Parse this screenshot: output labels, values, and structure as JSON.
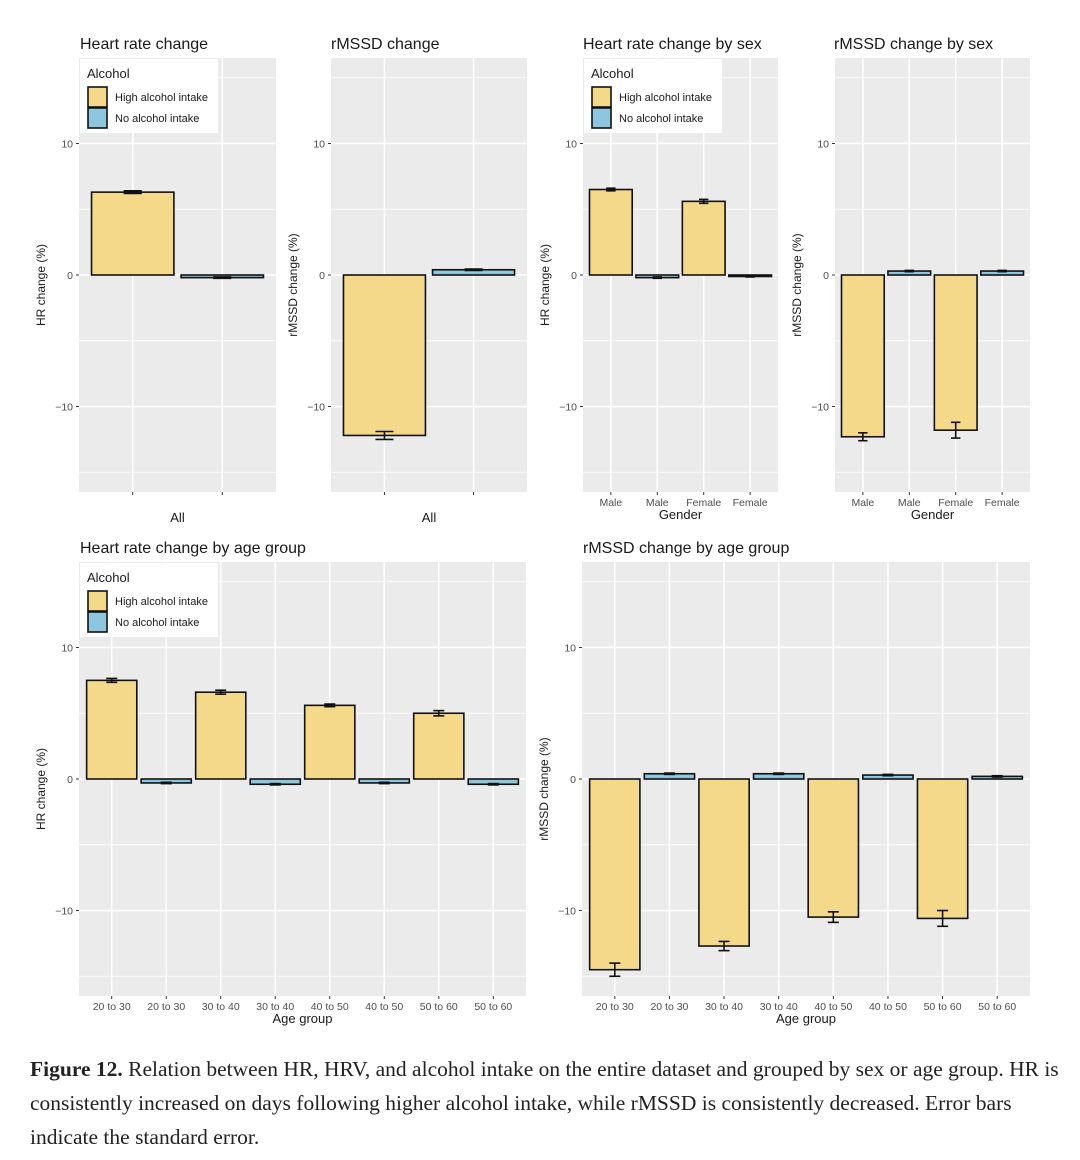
{
  "colors": {
    "high": "#F5D98A",
    "none": "#8EC6E0",
    "panel_bg": "#EBEBEB",
    "grid": "#FFFFFF",
    "bar_outline": "#111111",
    "tick_text": "#4D4D4D"
  },
  "legend": {
    "title": "Alcohol",
    "items": [
      {
        "label": "High alcohol intake",
        "key": "high"
      },
      {
        "label": "No alcohol intake",
        "key": "none"
      }
    ]
  },
  "chart_data": [
    {
      "type": "bar",
      "title": "Heart rate change",
      "xlabel": "All",
      "ylabel": "HR change (%)",
      "ylim": [
        -16.5,
        16.5
      ],
      "yticks": [
        10,
        0,
        -10
      ],
      "show_tick_labels": false,
      "legend": true,
      "categories": [
        "All",
        "All"
      ],
      "series_keys": [
        "high",
        "none"
      ],
      "values": [
        6.3,
        -0.2
      ],
      "errors": [
        0.1,
        0.05
      ]
    },
    {
      "type": "bar",
      "title": "rMSSD change",
      "xlabel": "All",
      "ylabel": "rMSSD change (%)",
      "ylim": [
        -16.5,
        16.5
      ],
      "yticks": [
        10,
        0,
        -10
      ],
      "show_tick_labels": false,
      "legend": false,
      "categories": [
        "All",
        "All"
      ],
      "series_keys": [
        "high",
        "none"
      ],
      "values": [
        -12.2,
        0.4
      ],
      "errors": [
        0.3,
        0.05
      ]
    },
    {
      "type": "bar",
      "title": "Heart rate change by sex",
      "xlabel": "Gender",
      "ylabel": "HR change (%)",
      "ylim": [
        -16.5,
        16.5
      ],
      "yticks": [
        10,
        0,
        -10
      ],
      "show_tick_labels": true,
      "legend": true,
      "categories": [
        "Male",
        "Male",
        "Female",
        "Female"
      ],
      "series_keys": [
        "high",
        "none",
        "high",
        "none"
      ],
      "values": [
        6.5,
        -0.2,
        5.6,
        -0.1
      ],
      "errors": [
        0.1,
        0.05,
        0.15,
        0.05
      ]
    },
    {
      "type": "bar",
      "title": "rMSSD change by sex",
      "xlabel": "Gender",
      "ylabel": "rMSSD change (%)",
      "ylim": [
        -16.5,
        16.5
      ],
      "yticks": [
        10,
        0,
        -10
      ],
      "show_tick_labels": true,
      "legend": false,
      "categories": [
        "Male",
        "Male",
        "Female",
        "Female"
      ],
      "series_keys": [
        "high",
        "none",
        "high",
        "none"
      ],
      "values": [
        -12.3,
        0.3,
        -11.8,
        0.3
      ],
      "errors": [
        0.3,
        0.05,
        0.6,
        0.05
      ]
    },
    {
      "type": "bar",
      "title": "Heart rate change by age group",
      "xlabel": "Age group",
      "ylabel": "HR change (%)",
      "ylim": [
        -16.5,
        16.5
      ],
      "yticks": [
        10,
        0,
        -10
      ],
      "show_tick_labels": true,
      "legend": true,
      "categories": [
        "20 to 30",
        "20 to 30",
        "30 to 40",
        "30 to 40",
        "40 to 50",
        "40 to 50",
        "50 to 60",
        "50 to 60"
      ],
      "series_keys": [
        "high",
        "none",
        "high",
        "none",
        "high",
        "none",
        "high",
        "none"
      ],
      "values": [
        7.5,
        -0.3,
        6.6,
        -0.4,
        5.6,
        -0.3,
        5.0,
        -0.4
      ],
      "errors": [
        0.15,
        0.05,
        0.15,
        0.05,
        0.1,
        0.05,
        0.2,
        0.05
      ]
    },
    {
      "type": "bar",
      "title": "rMSSD change by age group",
      "xlabel": "Age group",
      "ylabel": "rMSSD change (%)",
      "ylim": [
        -16.5,
        16.5
      ],
      "yticks": [
        10,
        0,
        -10
      ],
      "show_tick_labels": true,
      "legend": false,
      "categories": [
        "20 to 30",
        "20 to 30",
        "30 to 40",
        "30 to 40",
        "40 to 50",
        "40 to 50",
        "50 to 60",
        "50 to 60"
      ],
      "series_keys": [
        "high",
        "none",
        "high",
        "none",
        "high",
        "none",
        "high",
        "none"
      ],
      "values": [
        -14.5,
        0.4,
        -12.7,
        0.4,
        -10.5,
        0.3,
        -10.6,
        0.2
      ],
      "errors": [
        0.5,
        0.05,
        0.35,
        0.05,
        0.4,
        0.05,
        0.6,
        0.05
      ]
    }
  ],
  "caption": {
    "label": "Figure 12.",
    "text": " Relation between HR, HRV, and alcohol intake on the entire dataset and grouped by sex or age group. HR is consistently increased on days following higher alcohol intake, while rMSSD is consistently decreased. Error bars indicate the standard error."
  }
}
